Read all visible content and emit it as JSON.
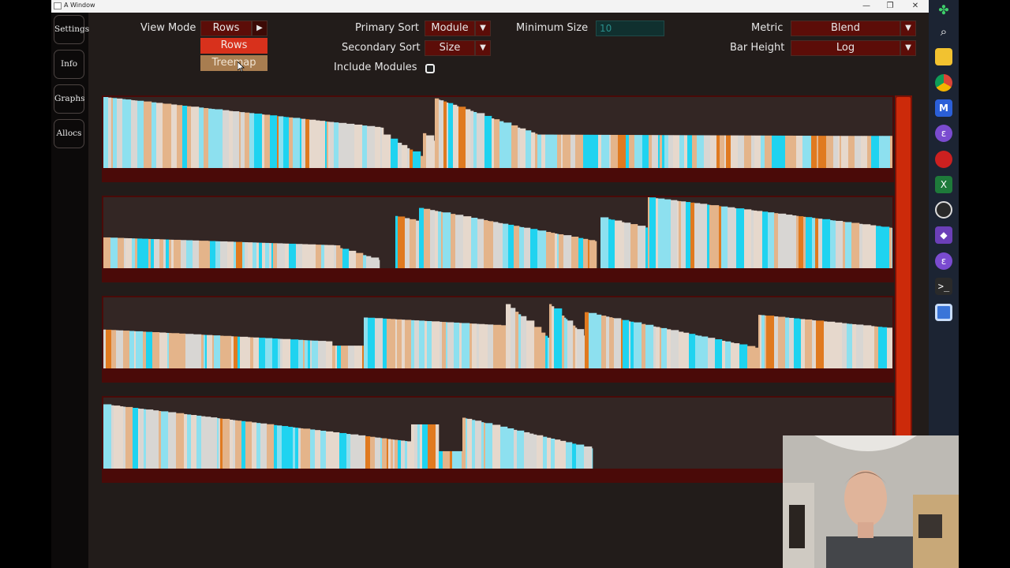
{
  "window": {
    "title": "A Window",
    "minimize": "—",
    "restore": "❐",
    "close": "✕"
  },
  "sidebar": {
    "items": [
      {
        "label": "Settings"
      },
      {
        "label": "Info"
      },
      {
        "label": "Graphs"
      },
      {
        "label": "Allocs"
      }
    ]
  },
  "controls": {
    "view_mode": {
      "label": "View Mode",
      "value": "Rows",
      "options": [
        "Rows",
        "Treemap"
      ]
    },
    "primary_sort": {
      "label": "Primary Sort",
      "value": "Module"
    },
    "secondary_sort": {
      "label": "Secondary Sort",
      "value": "Size"
    },
    "include_modules": {
      "label": "Include Modules",
      "checked": false
    },
    "minimum_size": {
      "label": "Minimum Size",
      "value": "10"
    },
    "metric": {
      "label": "Metric",
      "value": "Blend"
    },
    "bar_height": {
      "label": "Bar Height",
      "value": "Log"
    }
  },
  "colors": {
    "cyan": "#1fd3f0",
    "light_cyan": "#8de0ef",
    "peach": "#e4b48a",
    "beige": "#e6d8cc",
    "grey": "#d8d6d3",
    "orange": "#e07a20",
    "accent_red": "#d8311c"
  },
  "taskbar_icons": [
    "clover-icon",
    "search-icon",
    "folder-icon",
    "chrome-icon",
    "visual-studio-code-icon",
    "emacs-icon",
    "pixel-editor-icon",
    "excel-icon",
    "obs-icon",
    "visual-studio-icon",
    "emacs-icon",
    "terminal-icon",
    "window-icon"
  ]
}
